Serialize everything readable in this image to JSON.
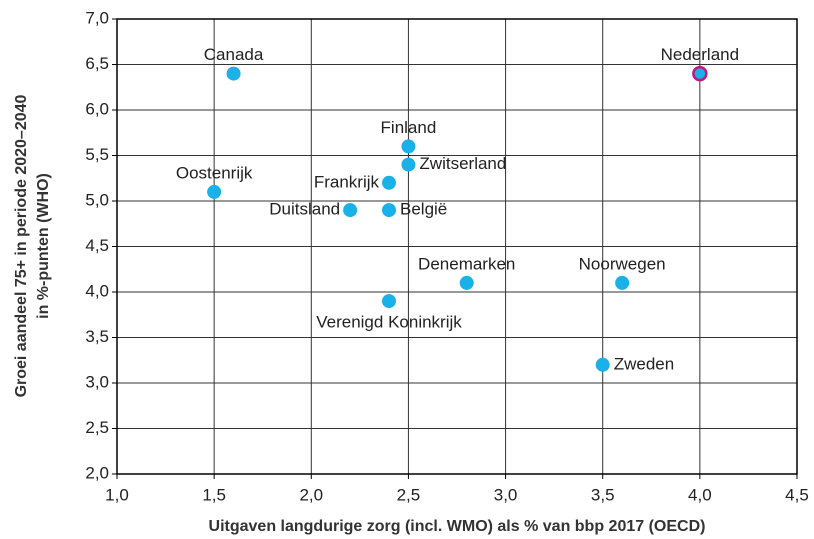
{
  "chart_data": {
    "type": "scatter",
    "xlabel": "Uitgaven langdurige zorg (incl. WMO) als % van bbp 2017 (OECD)",
    "ylabel": [
      "Groei aandeel 75+ in periode 2020–2040",
      "in %-punten (WHO)"
    ],
    "labels": [
      "Canada",
      "Oostenrijk",
      "Duitsland",
      "België",
      "Frankrijk",
      "Finland",
      "Zwitserland",
      "Verenigd Koninkrijk",
      "Denemarken",
      "Noorwegen",
      "Zweden",
      "Nederland"
    ],
    "x": [
      1.6,
      1.5,
      2.2,
      2.4,
      2.4,
      2.5,
      2.5,
      2.4,
      2.8,
      3.6,
      3.5,
      4.0
    ],
    "values": [
      6.4,
      5.1,
      4.9,
      4.9,
      5.2,
      5.6,
      5.4,
      3.9,
      4.1,
      4.1,
      3.2,
      6.4
    ],
    "color": "#1ab0e8",
    "edgecolors": [
      "#1ab0e8",
      "#1ab0e8",
      "#1ab0e8",
      "#1ab0e8",
      "#1ab0e8",
      "#1ab0e8",
      "#1ab0e8",
      "#1ab0e8",
      "#1ab0e8",
      "#1ab0e8",
      "#1ab0e8",
      "#c2187f"
    ],
    "xlim": [
      1.0,
      4.5
    ],
    "xticks": [
      {
        "value": 1.0,
        "label": "1,0"
      },
      {
        "value": 1.5,
        "label": "1,5"
      },
      {
        "value": 2.0,
        "label": "2,0"
      },
      {
        "value": 2.5,
        "label": "2,5"
      },
      {
        "value": 3.0,
        "label": "3,0"
      },
      {
        "value": 3.5,
        "label": "3,5"
      },
      {
        "value": 4.0,
        "label": "4,0"
      },
      {
        "value": 4.5,
        "label": "4,5"
      }
    ],
    "ylim": [
      2.0,
      7.0
    ],
    "yticks": [
      {
        "value": 2.0,
        "label": "2,0"
      },
      {
        "value": 2.5,
        "label": "2,5"
      },
      {
        "value": 3.0,
        "label": "3,0"
      },
      {
        "value": 3.5,
        "label": "3,5"
      },
      {
        "value": 4.0,
        "label": "4,0"
      },
      {
        "value": 4.5,
        "label": "4,5"
      },
      {
        "value": 5.0,
        "label": "5,0"
      },
      {
        "value": 5.5,
        "label": "5,5"
      },
      {
        "value": 6.0,
        "label": "6,0"
      },
      {
        "value": 6.5,
        "label": "6,5"
      },
      {
        "value": 7.0,
        "label": "7,0"
      }
    ],
    "grid": true
  }
}
